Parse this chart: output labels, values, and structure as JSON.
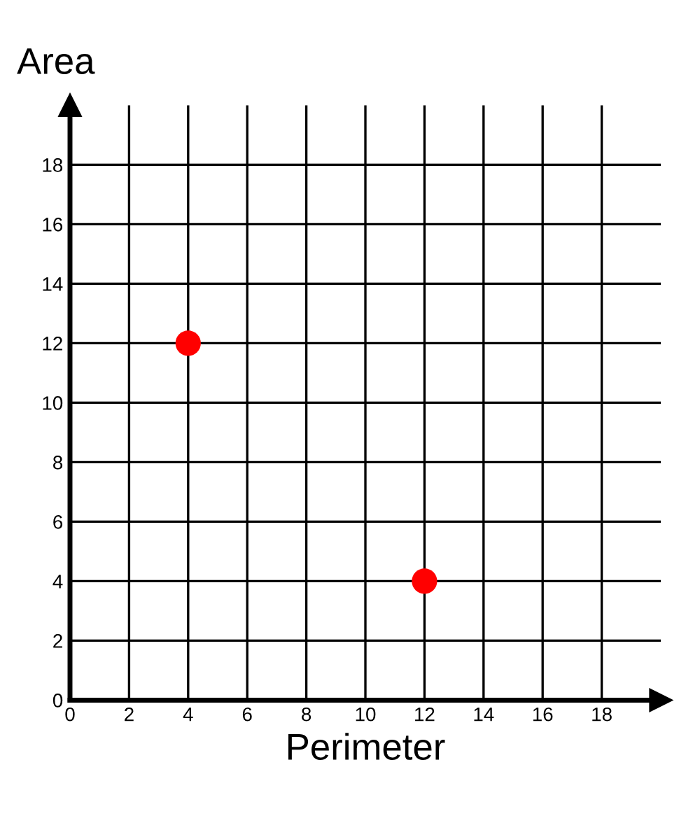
{
  "chart_data": {
    "type": "scatter",
    "xlabel": "Perimeter",
    "ylabel": "Area",
    "x": [
      4,
      12
    ],
    "series": [
      {
        "color": "#ff0000",
        "values": [
          12,
          4
        ]
      }
    ],
    "xlim": [
      0,
      20
    ],
    "ylim": [
      0,
      20
    ],
    "xticks": [
      0,
      2,
      4,
      6,
      8,
      10,
      12,
      14,
      16,
      18
    ],
    "yticks": [
      0,
      2,
      4,
      6,
      8,
      10,
      12,
      14,
      16,
      18
    ],
    "grid": true,
    "marker": "circle"
  }
}
